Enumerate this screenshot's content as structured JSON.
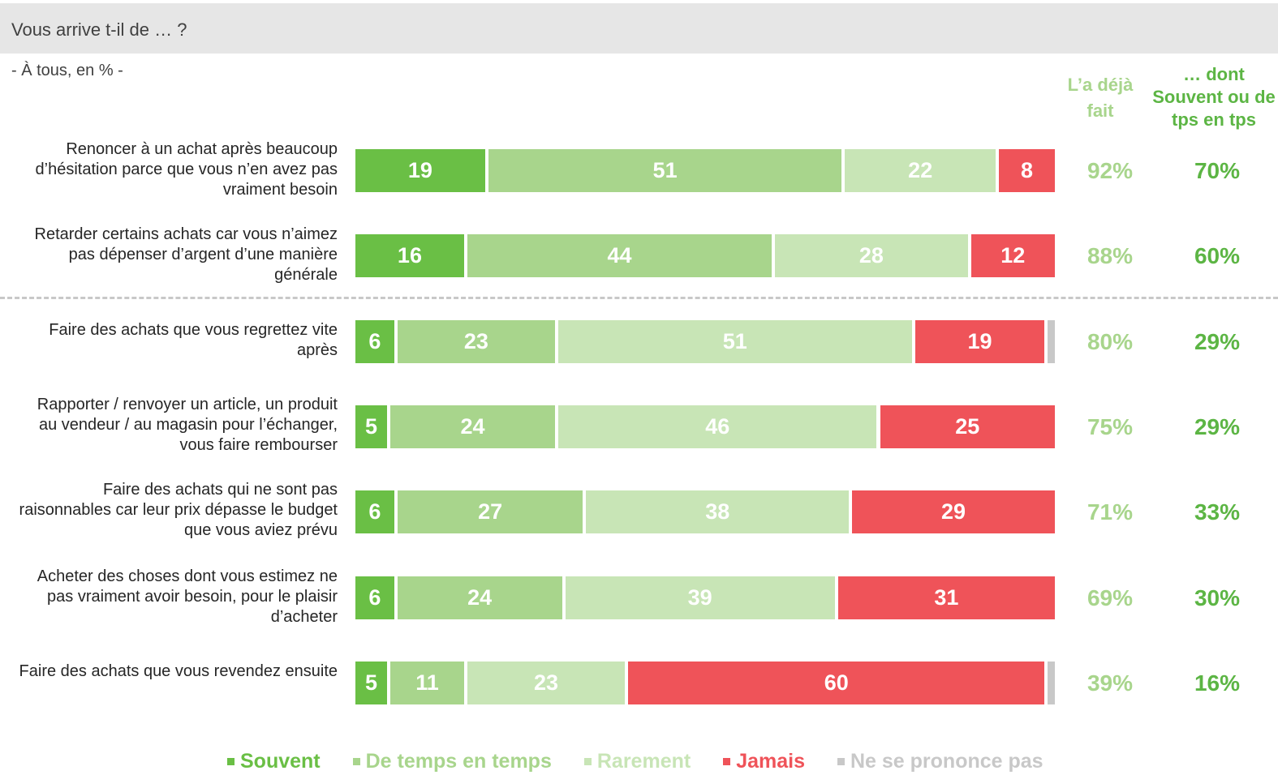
{
  "header": {
    "title": "Vous arrive t-il de … ?",
    "subtitle": "- À tous, en % -"
  },
  "columns": {
    "deja_fait": "L’a déjà fait",
    "souvent_tps": "… dont Souvent ou de tps en tps"
  },
  "colors": {
    "souvent": "#6abf45",
    "de_temps_en_temps": "#a8d58c",
    "rarement": "#c8e5b6",
    "jamais": "#ef5359",
    "nspp": "#c8c8c8"
  },
  "legend": [
    {
      "label": "Souvent",
      "color": "#6abf45"
    },
    {
      "label": "De temps en temps",
      "color": "#a8d58c"
    },
    {
      "label": "Rarement",
      "color": "#c8e5b6"
    },
    {
      "label": "Jamais",
      "color": "#ef5359"
    },
    {
      "label": "Ne se prononce pas",
      "color": "#c8c8c8"
    }
  ],
  "chart_data": {
    "type": "bar",
    "orientation": "horizontal-stacked-100",
    "title": "Vous arrive t-il de … ?",
    "subtitle": "- À tous, en % -",
    "series": [
      {
        "name": "Souvent",
        "values": [
          19,
          16,
          6,
          5,
          6,
          6,
          5
        ]
      },
      {
        "name": "De temps en temps",
        "values": [
          51,
          44,
          23,
          24,
          27,
          24,
          11
        ]
      },
      {
        "name": "Rarement",
        "values": [
          22,
          28,
          51,
          46,
          38,
          39,
          23
        ]
      },
      {
        "name": "Jamais",
        "values": [
          8,
          12,
          19,
          25,
          29,
          31,
          60
        ]
      },
      {
        "name": "Ne se prononce pas",
        "values": [
          0,
          0,
          1,
          0,
          0,
          0,
          1
        ]
      }
    ],
    "rows": [
      {
        "label": "Renoncer à un achat après beaucoup d’hésitation parce que vous n’en avez pas vraiment besoin",
        "values": [
          19,
          51,
          22,
          8,
          0
        ],
        "deja_fait": "92%",
        "souvent_tps": "70%"
      },
      {
        "label": "Retarder certains achats car vous n’aimez pas dépenser d’argent d’une manière générale",
        "values": [
          16,
          44,
          28,
          12,
          0
        ],
        "deja_fait": "88%",
        "souvent_tps": "60%"
      },
      {
        "label": "Faire des achats que vous regrettez vite après",
        "values": [
          6,
          23,
          51,
          19,
          1
        ],
        "deja_fait": "80%",
        "souvent_tps": "29%"
      },
      {
        "label": "Rapporter / renvoyer un article, un produit au vendeur / au magasin pour l’échanger, vous faire rembourser",
        "values": [
          5,
          24,
          46,
          25,
          0
        ],
        "deja_fait": "75%",
        "souvent_tps": "29%"
      },
      {
        "label": "Faire des achats qui ne sont pas raisonnables car leur prix dépasse le budget que vous aviez prévu",
        "values": [
          6,
          27,
          38,
          29,
          0
        ],
        "deja_fait": "71%",
        "souvent_tps": "33%"
      },
      {
        "label": "Acheter des choses dont vous estimez ne pas vraiment avoir besoin, pour le plaisir d’acheter",
        "values": [
          6,
          24,
          39,
          31,
          0
        ],
        "deja_fait": "69%",
        "souvent_tps": "30%"
      },
      {
        "label": "Faire des achats que vous revendez ensuite",
        "values": [
          5,
          11,
          23,
          60,
          1
        ],
        "deja_fait": "39%",
        "souvent_tps": "16%"
      }
    ],
    "xlim": [
      0,
      100
    ],
    "grid": false,
    "legend_position": "bottom"
  }
}
